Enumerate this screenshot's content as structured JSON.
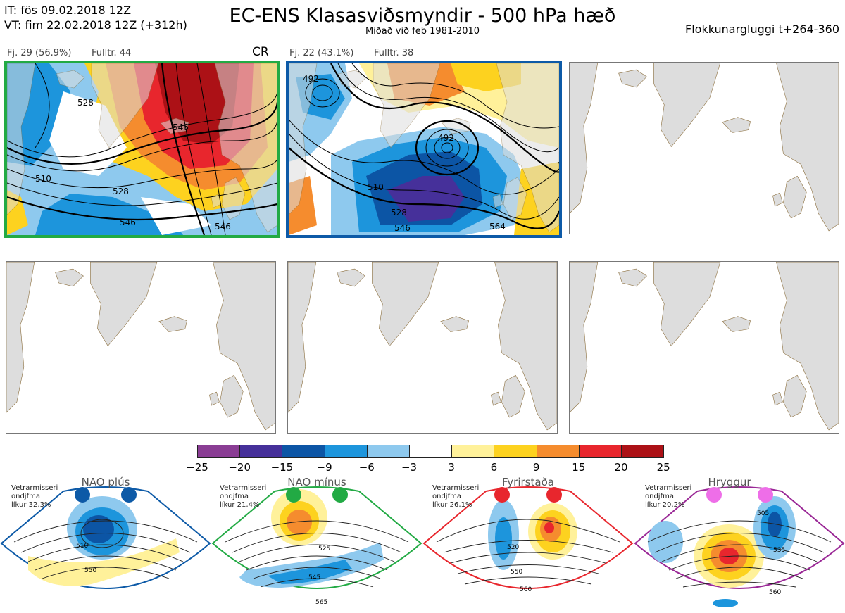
{
  "header": {
    "line1": "IT: fös 09.02.2018 12Z",
    "line2": "VT: fim 22.02.2018 12Z  (+312h)",
    "title": "EC-ENS Klasasviðsmyndir - 500 hPa hæð",
    "subtitle": "Miðað við feb 1981-2010",
    "window": "Flokkunargluggi t+264-360"
  },
  "clusters": [
    {
      "label": "Fj. 29 (56.9%)",
      "members": "Fulltr. 44",
      "tag": "CR",
      "border_color": "#22aa44",
      "contour_labels": [
        "510",
        "528",
        "546",
        "528",
        "546",
        "546",
        "510"
      ]
    },
    {
      "label": "Fj. 22 (43.1%)",
      "members": "Fulltr. 38",
      "tag": "",
      "border_color": "#0d5aa7",
      "contour_labels": [
        "492",
        "492",
        "510",
        "528",
        "546",
        "564",
        "528"
      ]
    }
  ],
  "legend": {
    "ticks": [
      "−25",
      "−20",
      "−15",
      "−9",
      "−6",
      "−3",
      "3",
      "6",
      "9",
      "15",
      "20",
      "25"
    ],
    "colors": [
      "#8a3d94",
      "#46309a",
      "#0c55a5",
      "#1d95dc",
      "#8ec9ee",
      "#ffffff",
      "#fff19a",
      "#fdd21f",
      "#f58c2e",
      "#e8262d",
      "#ac1116"
    ]
  },
  "regimes": [
    {
      "name": "NAO plús",
      "info": [
        "Vetrarmisseri",
        "ondjfma",
        "líkur 32,3%"
      ],
      "color": "#0d5aa7",
      "contours": [
        "510",
        "550"
      ]
    },
    {
      "name": "NAO mínus",
      "info": [
        "Vetrarmisseri",
        "ondjfma",
        "líkur 21,4%"
      ],
      "color": "#22aa44",
      "contours": [
        "525",
        "545",
        "565"
      ]
    },
    {
      "name": "Fyrirstaða",
      "info": [
        "Vetrarmisseri",
        "ondjfma",
        "líkur 26,1%"
      ],
      "color": "#e8262d",
      "contours": [
        "520",
        "550",
        "560"
      ]
    },
    {
      "name": "Hryggur",
      "info": [
        "Vetrarmisseri",
        "ondjfma",
        "líkur 20,2%"
      ],
      "color": "#9a2896",
      "contours": [
        "505",
        "535",
        "560"
      ]
    }
  ]
}
